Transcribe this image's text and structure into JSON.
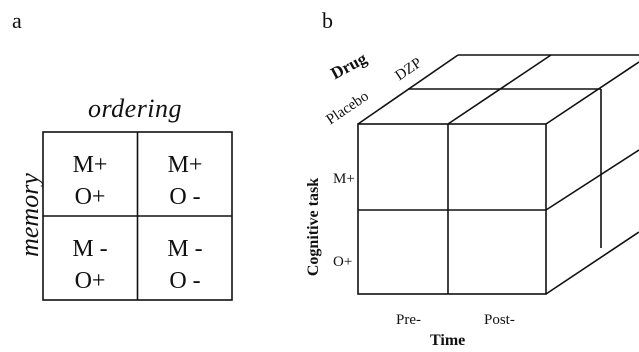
{
  "panel_a": {
    "label": "a",
    "column_header": "ordering",
    "row_header": "memory",
    "cells": [
      {
        "line1": "M+",
        "line2": "O+"
      },
      {
        "line1": "M+",
        "line2": "O -"
      },
      {
        "line1": "M -",
        "line2": "O+"
      },
      {
        "line1": "M -",
        "line2": "O -"
      }
    ]
  },
  "panel_b": {
    "label": "b",
    "drug_axis": {
      "title": "Drug",
      "levels": [
        "Placebo",
        "DZP"
      ]
    },
    "task_axis": {
      "title": "Cognitive task",
      "levels": [
        "M+",
        "O+"
      ]
    },
    "time_axis": {
      "title": "Time",
      "levels": [
        "Pre-",
        "Post-"
      ]
    }
  }
}
